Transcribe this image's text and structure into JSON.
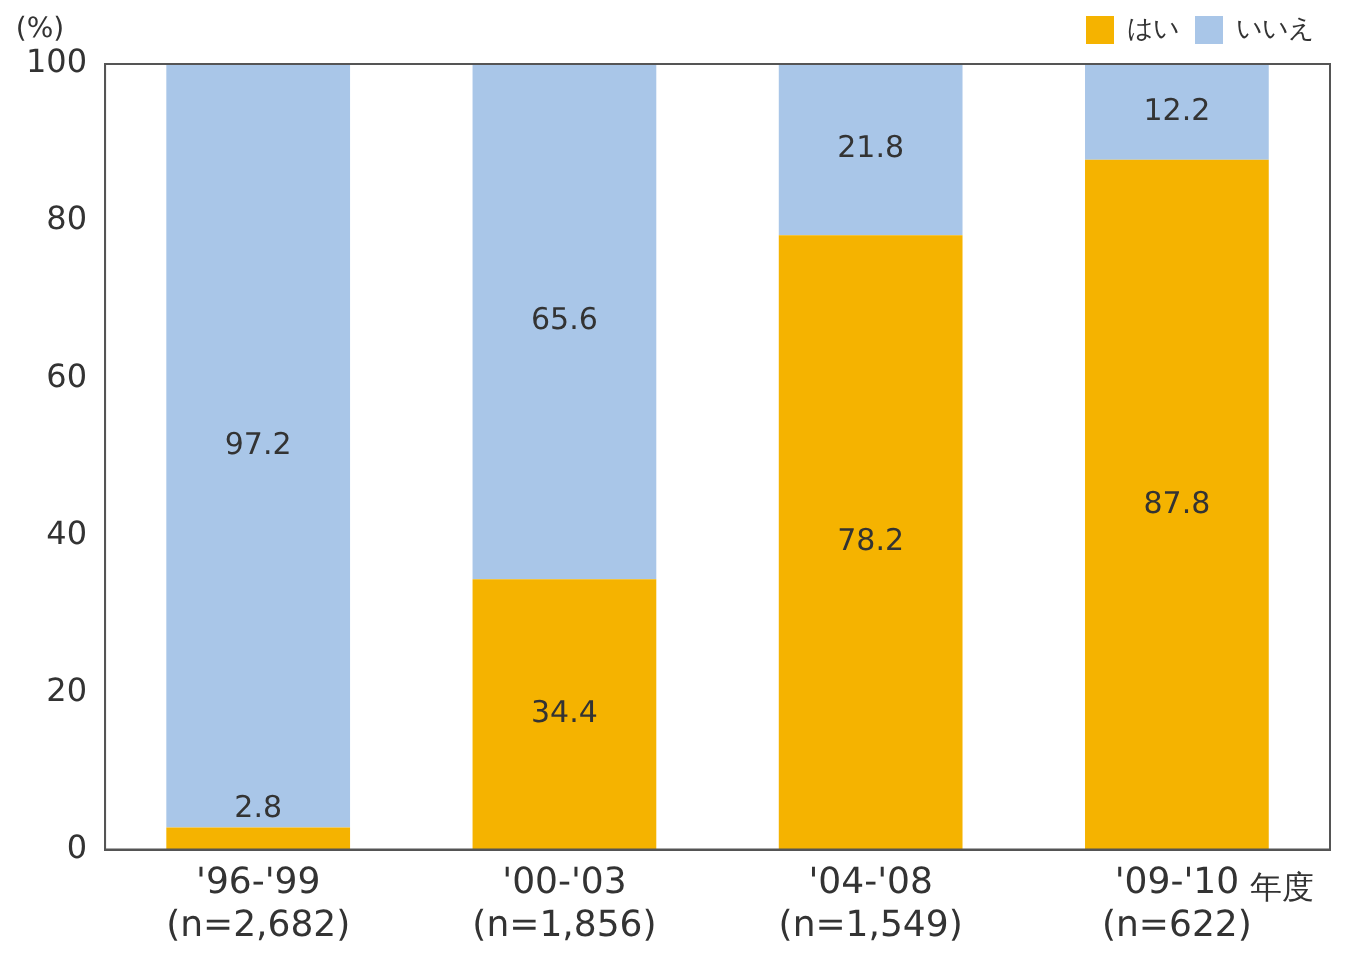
{
  "chart_data": {
    "type": "bar",
    "stacked": true,
    "ylabel": "(%)",
    "xlabel": "年度",
    "categories": [
      "'96-'99\n(n=2,682)",
      "'00-'03\n(n=1,856)",
      "'04-'08\n(n=1,549)",
      "'09-'10\n(n=622)"
    ],
    "series": [
      {
        "name": "はい",
        "color": "#f5b300",
        "values": [
          2.8,
          34.4,
          78.2,
          87.8
        ]
      },
      {
        "name": "いいえ",
        "color": "#a9c6e8",
        "values": [
          97.2,
          65.6,
          21.8,
          12.2
        ]
      }
    ],
    "ylim": [
      0,
      100
    ],
    "yticks": [
      0,
      20,
      40,
      60,
      80,
      100
    ],
    "grid": false,
    "legend": "top right",
    "data_labels": true
  }
}
